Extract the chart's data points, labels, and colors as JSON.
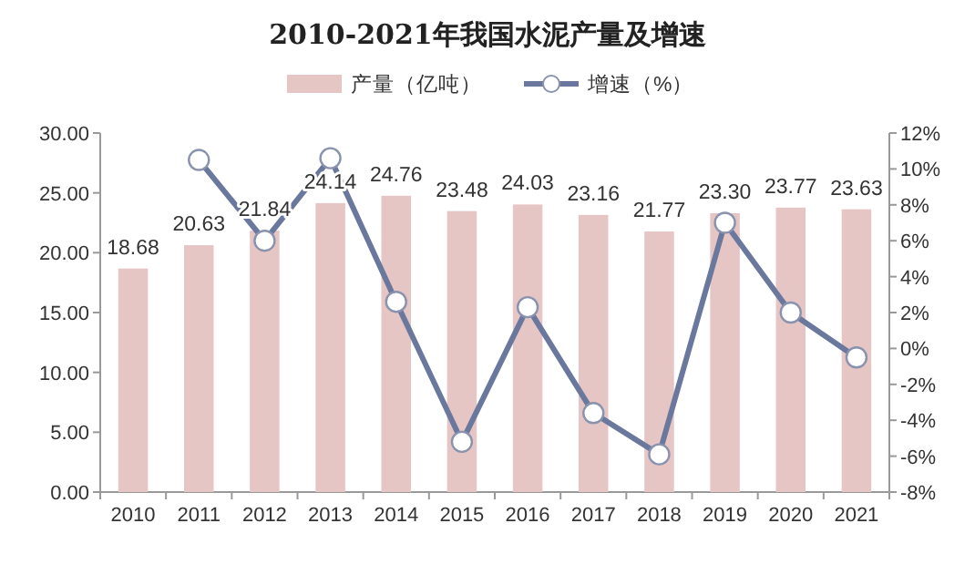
{
  "chart_data": {
    "type": "bar",
    "title": "2010-2021年我国水泥产量及增速",
    "categories": [
      "2010",
      "2011",
      "2012",
      "2013",
      "2014",
      "2015",
      "2016",
      "2017",
      "2018",
      "2019",
      "2020",
      "2021"
    ],
    "series": [
      {
        "name": "产量（亿吨）",
        "color": "#e6c5c5",
        "values": [
          18.68,
          20.63,
          21.84,
          24.14,
          24.76,
          23.48,
          24.03,
          23.16,
          21.77,
          23.3,
          23.77,
          23.63
        ],
        "value_labels": [
          "18.68",
          "20.63",
          "21.84",
          "24.14",
          "24.76",
          "23.48",
          "24.03",
          "23.16",
          "21.77",
          "23.30",
          "23.77",
          "23.63"
        ]
      },
      {
        "name": "增速（%）",
        "type": "line",
        "axis": "y2",
        "marker": "circle",
        "color": "#6b789e",
        "values": [
          null,
          10.5,
          6.0,
          10.6,
          2.6,
          -5.2,
          2.3,
          -3.6,
          -5.9,
          7.0,
          2.0,
          -0.5
        ]
      }
    ],
    "ylim": [
      0,
      30
    ],
    "yticks": [
      {
        "value": 0,
        "label": "0.00"
      },
      {
        "value": 5,
        "label": "5.00"
      },
      {
        "value": 10,
        "label": "10.00"
      },
      {
        "value": 15,
        "label": "15.00"
      },
      {
        "value": 20,
        "label": "20.00"
      },
      {
        "value": 25,
        "label": "25.00"
      },
      {
        "value": 30,
        "label": "30.00"
      }
    ],
    "y2lim": [
      -8,
      12
    ],
    "y2ticks": [
      {
        "value": -8,
        "label": "-8%"
      },
      {
        "value": -6,
        "label": "-6%"
      },
      {
        "value": -4,
        "label": "-4%"
      },
      {
        "value": -2,
        "label": "-2%"
      },
      {
        "value": 0,
        "label": "0%"
      },
      {
        "value": 2,
        "label": "2%"
      },
      {
        "value": 4,
        "label": "4%"
      },
      {
        "value": 6,
        "label": "6%"
      },
      {
        "value": 8,
        "label": "8%"
      },
      {
        "value": 10,
        "label": "10%"
      },
      {
        "value": 12,
        "label": "12%"
      }
    ],
    "legend": "top"
  }
}
